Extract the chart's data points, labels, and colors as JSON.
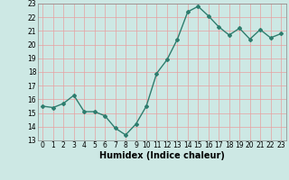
{
  "x": [
    0,
    1,
    2,
    3,
    4,
    5,
    6,
    7,
    8,
    9,
    10,
    11,
    12,
    13,
    14,
    15,
    16,
    17,
    18,
    19,
    20,
    21,
    22,
    23
  ],
  "y": [
    15.5,
    15.4,
    15.7,
    16.3,
    15.1,
    15.1,
    14.8,
    13.9,
    13.4,
    14.2,
    15.5,
    17.9,
    18.9,
    20.4,
    22.4,
    22.8,
    22.1,
    21.3,
    20.7,
    21.2,
    20.4,
    21.1,
    20.5,
    20.8
  ],
  "line_color": "#2e7d6e",
  "marker": "D",
  "markersize": 2.0,
  "linewidth": 1.0,
  "xlabel": "Humidex (Indice chaleur)",
  "xlim": [
    -0.5,
    23.5
  ],
  "ylim": [
    13,
    23
  ],
  "yticks": [
    13,
    14,
    15,
    16,
    17,
    18,
    19,
    20,
    21,
    22,
    23
  ],
  "xticks": [
    0,
    1,
    2,
    3,
    4,
    5,
    6,
    7,
    8,
    9,
    10,
    11,
    12,
    13,
    14,
    15,
    16,
    17,
    18,
    19,
    20,
    21,
    22,
    23
  ],
  "background_color": "#cde8e4",
  "grid_color": "#e8a0a0",
  "xlabel_fontsize": 7,
  "tick_fontsize": 5.5,
  "fig_width": 3.2,
  "fig_height": 2.0,
  "dpi": 100
}
